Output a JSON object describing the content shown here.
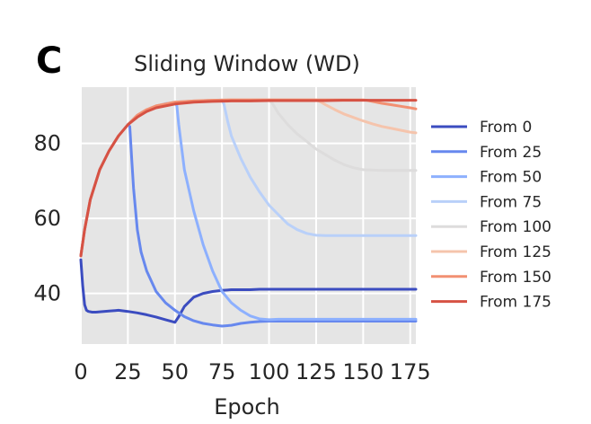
{
  "panel_label": "C",
  "chart_data": {
    "type": "line",
    "title": "Sliding Window (WD)",
    "xlabel": "Epoch",
    "ylabel": "",
    "xlim": [
      0,
      178
    ],
    "ylim": [
      26.5,
      95
    ],
    "xticks": [
      0,
      25,
      50,
      75,
      100,
      125,
      150,
      175
    ],
    "xtick_labels": [
      "0",
      "25",
      "50",
      "75",
      "100",
      "125",
      "150",
      "175"
    ],
    "yticks": [
      40,
      60,
      80
    ],
    "ytick_labels": [
      "40",
      "60",
      "80"
    ],
    "grid": true,
    "background": "#e5e5e5",
    "legend_position": "right",
    "series": [
      {
        "name": "From 0",
        "color": "#3b4cc0",
        "x": [
          0,
          1,
          2,
          3,
          4,
          6,
          8,
          10,
          15,
          20,
          25,
          30,
          35,
          40,
          45,
          50,
          52,
          55,
          60,
          65,
          70,
          75,
          80,
          85,
          90,
          95,
          100,
          110,
          120,
          130,
          140,
          150,
          160,
          170,
          178
        ],
        "y": [
          49,
          42,
          37,
          35.5,
          35.2,
          35.0,
          35.0,
          35.1,
          35.3,
          35.5,
          35.2,
          34.8,
          34.3,
          33.7,
          33.0,
          32.3,
          33.8,
          36.5,
          39.0,
          40.0,
          40.5,
          40.8,
          41.0,
          41.0,
          41.0,
          41.1,
          41.1,
          41.1,
          41.1,
          41.1,
          41.1,
          41.1,
          41.1,
          41.1,
          41.1
        ]
      },
      {
        "name": "From 25",
        "color": "#6788ee",
        "x": [
          0,
          2,
          5,
          10,
          15,
          20,
          25,
          26,
          27,
          28,
          30,
          32,
          35,
          40,
          45,
          50,
          55,
          60,
          65,
          70,
          75,
          80,
          85,
          90,
          95,
          100,
          110,
          120,
          130,
          140,
          150,
          160,
          170,
          178
        ],
        "y": [
          50,
          57,
          65,
          73,
          78,
          82,
          85,
          84.5,
          76,
          68,
          57,
          51,
          46,
          40.5,
          37.5,
          35.5,
          33.8,
          32.7,
          32.0,
          31.6,
          31.3,
          31.5,
          32.0,
          32.3,
          32.5,
          32.6,
          32.6,
          32.6,
          32.6,
          32.6,
          32.6,
          32.6,
          32.6,
          32.6
        ]
      },
      {
        "name": "From 50",
        "color": "#8db0fe",
        "x": [
          0,
          2,
          5,
          10,
          15,
          20,
          25,
          30,
          35,
          40,
          45,
          50,
          51,
          52,
          55,
          60,
          65,
          70,
          75,
          80,
          85,
          90,
          95,
          100,
          105,
          110,
          120,
          130,
          140,
          150,
          160,
          170,
          178
        ],
        "y": [
          50,
          57,
          65,
          73,
          78,
          82,
          85,
          87.5,
          89,
          90,
          90.6,
          90.9,
          90,
          85,
          73,
          62,
          53,
          46,
          40.5,
          37.5,
          35.5,
          34,
          33.2,
          33.0,
          33.1,
          33.1,
          33.1,
          33.1,
          33.1,
          33.1,
          33.1,
          33.1,
          33.1
        ]
      },
      {
        "name": "From 75",
        "color": "#b9d0f9",
        "x": [
          0,
          2,
          5,
          10,
          15,
          20,
          25,
          30,
          35,
          40,
          50,
          60,
          70,
          75,
          76,
          78,
          80,
          85,
          90,
          95,
          100,
          105,
          110,
          115,
          120,
          125,
          130,
          140,
          150,
          160,
          170,
          178
        ],
        "y": [
          50,
          57,
          65,
          73,
          78,
          82,
          85,
          87.5,
          89,
          90,
          91,
          91.3,
          91.5,
          91.6,
          90.5,
          86,
          82,
          76,
          71,
          67,
          63.5,
          61,
          58.5,
          57,
          56,
          55.5,
          55.4,
          55.4,
          55.4,
          55.4,
          55.4,
          55.4
        ]
      },
      {
        "name": "From 100",
        "color": "#dddcdc",
        "x": [
          0,
          2,
          5,
          10,
          15,
          20,
          25,
          30,
          35,
          40,
          50,
          60,
          70,
          80,
          90,
          100,
          102,
          105,
          110,
          115,
          120,
          125,
          130,
          135,
          140,
          145,
          150,
          160,
          170,
          178
        ],
        "y": [
          50,
          57,
          65,
          73,
          78,
          82,
          85,
          87.5,
          89,
          90,
          91,
          91.3,
          91.5,
          91.6,
          91.6,
          91.6,
          90.5,
          88,
          85,
          82.5,
          80.5,
          78.5,
          77,
          75.5,
          74.3,
          73.5,
          73,
          72.8,
          72.8,
          72.8
        ]
      },
      {
        "name": "From 125",
        "color": "#f5c4ac",
        "x": [
          0,
          2,
          5,
          10,
          15,
          20,
          25,
          30,
          35,
          40,
          50,
          60,
          70,
          80,
          90,
          100,
          110,
          120,
          125,
          127,
          130,
          135,
          140,
          145,
          150,
          155,
          160,
          165,
          170,
          175,
          178
        ],
        "y": [
          50,
          57,
          65,
          73,
          78,
          82,
          85,
          87.5,
          89,
          90,
          91,
          91.3,
          91.5,
          91.6,
          91.6,
          91.6,
          91.6,
          91.6,
          91.6,
          91.2,
          90.3,
          89,
          87.8,
          86.9,
          86,
          85.2,
          84.5,
          84,
          83.5,
          83.0,
          82.8
        ]
      },
      {
        "name": "From 150",
        "color": "#f29072",
        "x": [
          0,
          2,
          5,
          10,
          15,
          20,
          25,
          30,
          35,
          40,
          50,
          60,
          70,
          80,
          90,
          100,
          110,
          120,
          130,
          140,
          150,
          152,
          155,
          160,
          165,
          170,
          175,
          178
        ],
        "y": [
          50,
          57,
          65,
          73,
          78,
          82,
          85,
          87.5,
          89,
          90,
          91,
          91.3,
          91.5,
          91.6,
          91.6,
          91.6,
          91.6,
          91.6,
          91.6,
          91.6,
          91.6,
          91.5,
          91.2,
          90.7,
          90.3,
          89.9,
          89.5,
          89.2
        ]
      },
      {
        "name": "From 175",
        "color": "#d65244",
        "x": [
          0,
          2,
          5,
          10,
          15,
          20,
          25,
          30,
          35,
          40,
          50,
          60,
          70,
          80,
          90,
          100,
          110,
          120,
          130,
          140,
          150,
          160,
          170,
          175,
          178
        ],
        "y": [
          50,
          57,
          65,
          73,
          78,
          82,
          85,
          87,
          88.5,
          89.5,
          90.5,
          91,
          91.2,
          91.3,
          91.3,
          91.4,
          91.4,
          91.4,
          91.4,
          91.5,
          91.5,
          91.5,
          91.5,
          91.5,
          91.5
        ]
      }
    ]
  }
}
